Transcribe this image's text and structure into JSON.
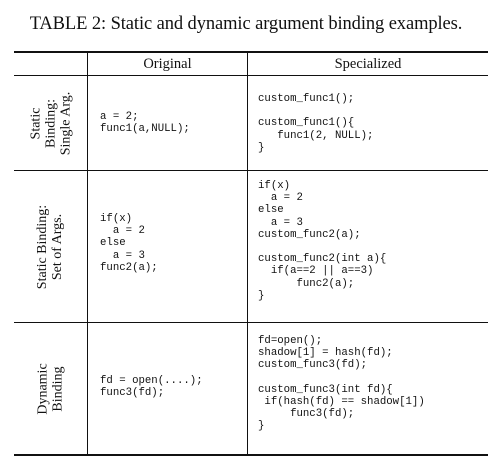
{
  "caption": "TABLE 2: Static and dynamic argument binding examples.",
  "columns": {
    "original": "Original",
    "specialized": "Specialized"
  },
  "rows": [
    {
      "label": [
        "Static",
        "Binding:",
        "Single Arg."
      ],
      "original": "a = 2;\nfunc1(a,NULL);",
      "specialized": "custom_func1();\n\ncustom_func1(){\n   func1(2, NULL);\n}"
    },
    {
      "label": [
        "Static Binding:",
        "Set of Args."
      ],
      "original": "if(x)\n  a = 2\nelse\n  a = 3\nfunc2(a);",
      "specialized": "if(x)\n  a = 2\nelse\n  a = 3\ncustom_func2(a);\n\ncustom_func2(int a){\n  if(a==2 || a==3)\n      func2(a);\n}"
    },
    {
      "label": [
        "Dynamic",
        "Binding"
      ],
      "original": "fd = open(....);\nfunc3(fd);",
      "specialized": "fd=open();\nshadow[1] = hash(fd);\ncustom_func3(fd);\n\ncustom_func3(int fd){\n if(hash(fd) == shadow[1])\n     func3(fd);\n}"
    }
  ]
}
